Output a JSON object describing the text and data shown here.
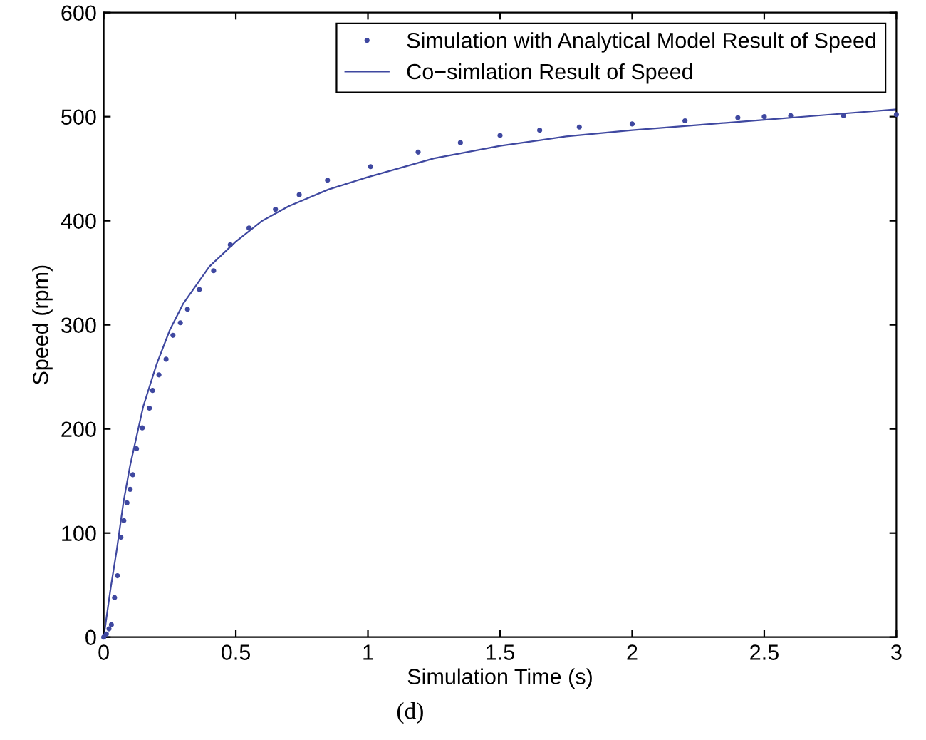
{
  "chart_data": {
    "type": "line",
    "xlabel": "Simulation Time (s)",
    "ylabel": "Speed (rpm)",
    "annotations": [
      "(d)"
    ],
    "xlim": [
      0,
      3
    ],
    "ylim": [
      0,
      600
    ],
    "xticks": [
      0,
      0.5,
      1,
      1.5,
      2,
      2.5,
      3
    ],
    "yticks": [
      0,
      100,
      200,
      300,
      400,
      500,
      600
    ],
    "grid": false,
    "legend": "top right",
    "series": [
      {
        "name": "Simulation with Analytical Model Result of Speed",
        "type": "scatter",
        "marker": "circle",
        "color": "#3f48a0",
        "x": [
          0,
          0.01,
          0.02,
          0.029,
          0.041,
          0.052,
          0.065,
          0.076,
          0.088,
          0.1,
          0.11,
          0.124,
          0.146,
          0.173,
          0.185,
          0.209,
          0.236,
          0.262,
          0.29,
          0.317,
          0.362,
          0.416,
          0.479,
          0.55,
          0.65,
          0.74,
          0.847,
          1.01,
          1.19,
          1.35,
          1.5,
          1.65,
          1.8,
          2.0,
          2.2,
          2.4,
          2.5,
          2.6,
          2.8,
          3.0
        ],
        "values": [
          0,
          3,
          8,
          12,
          38,
          59,
          96,
          112,
          129,
          142,
          156,
          181,
          201,
          220,
          237,
          252,
          267,
          290,
          302,
          315,
          334,
          352,
          377,
          393,
          411,
          425,
          439,
          452,
          466,
          475,
          482,
          487,
          490,
          493,
          496,
          499,
          500,
          501,
          501,
          502
        ]
      },
      {
        "name": "Co−simlation Result of Speed",
        "line_style": "solid",
        "color": "#3f48a0",
        "x": [
          0,
          0.025,
          0.05,
          0.075,
          0.1,
          0.15,
          0.2,
          0.25,
          0.3,
          0.4,
          0.5,
          0.6,
          0.7,
          0.85,
          1,
          1.25,
          1.5,
          1.75,
          2,
          2.25,
          2.5,
          2.75,
          3
        ],
        "values": [
          0,
          45,
          85,
          130,
          165,
          222,
          262,
          295,
          320,
          356,
          380,
          400,
          414,
          430,
          442,
          460,
          472,
          481,
          487,
          492,
          497,
          502,
          507
        ]
      }
    ]
  }
}
